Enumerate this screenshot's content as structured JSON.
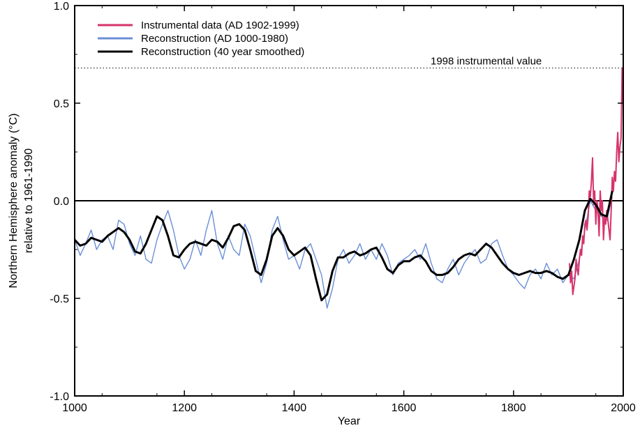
{
  "chart_data": {
    "type": "line",
    "xlabel": "Year",
    "ylabel": "Northern Hemisphere anomaly (°C)",
    "ylabel2": "relative to 1961-1990",
    "xlim": [
      1000,
      2000
    ],
    "ylim": [
      -1.0,
      1.0
    ],
    "xticks": [
      1000,
      1200,
      1400,
      1600,
      1800,
      2000
    ],
    "yticks": [
      "-1.0",
      "-0.5",
      "0.0",
      "0.5",
      "1.0"
    ],
    "ytick_values": [
      -1.0,
      -0.5,
      0.0,
      0.5,
      1.0
    ],
    "grid": false,
    "legend_position": "top-left",
    "zero_line": 0.0,
    "reference_line": {
      "value": 0.68,
      "label": "1998 instrumental value",
      "style": "dotted"
    },
    "series": [
      {
        "name": "Instrumental data (AD 1902-1999)",
        "color": "#d6336c",
        "x": [
          1902,
          1904,
          1906,
          1908,
          1910,
          1912,
          1914,
          1916,
          1918,
          1920,
          1922,
          1924,
          1926,
          1928,
          1930,
          1932,
          1934,
          1936,
          1938,
          1940,
          1942,
          1944,
          1946,
          1948,
          1950,
          1952,
          1954,
          1956,
          1958,
          1960,
          1962,
          1964,
          1966,
          1968,
          1970,
          1972,
          1974,
          1976,
          1978,
          1980,
          1982,
          1984,
          1986,
          1988,
          1990,
          1992,
          1994,
          1996,
          1998,
          1999
        ],
        "y": [
          -0.32,
          -0.42,
          -0.36,
          -0.48,
          -0.44,
          -0.4,
          -0.3,
          -0.35,
          -0.38,
          -0.3,
          -0.25,
          -0.28,
          -0.18,
          -0.22,
          -0.12,
          -0.1,
          -0.15,
          -0.08,
          0.05,
          0.02,
          0.1,
          0.22,
          -0.02,
          0.05,
          -0.12,
          0.0,
          -0.05,
          -0.18,
          0.05,
          -0.05,
          0.0,
          -0.2,
          -0.08,
          -0.12,
          -0.05,
          -0.1,
          -0.15,
          -0.2,
          -0.05,
          0.12,
          0.05,
          0.15,
          0.1,
          0.25,
          0.35,
          0.2,
          0.28,
          0.32,
          0.68,
          0.5
        ]
      },
      {
        "name": "Reconstruction (AD 1000-1980)",
        "color": "#6b8fd6",
        "x": [
          1000,
          1010,
          1020,
          1030,
          1040,
          1050,
          1060,
          1070,
          1080,
          1090,
          1100,
          1110,
          1120,
          1130,
          1140,
          1150,
          1160,
          1170,
          1180,
          1190,
          1200,
          1210,
          1220,
          1230,
          1240,
          1250,
          1260,
          1270,
          1280,
          1290,
          1300,
          1310,
          1320,
          1330,
          1340,
          1350,
          1360,
          1370,
          1380,
          1390,
          1400,
          1410,
          1420,
          1430,
          1440,
          1450,
          1460,
          1470,
          1480,
          1490,
          1500,
          1510,
          1520,
          1530,
          1540,
          1550,
          1560,
          1570,
          1580,
          1590,
          1600,
          1610,
          1620,
          1630,
          1640,
          1650,
          1660,
          1670,
          1680,
          1690,
          1700,
          1710,
          1720,
          1730,
          1740,
          1750,
          1760,
          1770,
          1780,
          1790,
          1800,
          1810,
          1820,
          1830,
          1840,
          1850,
          1860,
          1870,
          1880,
          1890,
          1900,
          1910,
          1920,
          1930,
          1940,
          1950,
          1960,
          1970,
          1980
        ],
        "y": [
          -0.2,
          -0.28,
          -0.22,
          -0.15,
          -0.25,
          -0.2,
          -0.18,
          -0.25,
          -0.1,
          -0.12,
          -0.22,
          -0.28,
          -0.18,
          -0.3,
          -0.32,
          -0.2,
          -0.12,
          -0.05,
          -0.15,
          -0.28,
          -0.35,
          -0.3,
          -0.2,
          -0.28,
          -0.15,
          -0.05,
          -0.22,
          -0.3,
          -0.18,
          -0.25,
          -0.28,
          -0.12,
          -0.18,
          -0.3,
          -0.42,
          -0.32,
          -0.15,
          -0.08,
          -0.2,
          -0.3,
          -0.28,
          -0.35,
          -0.25,
          -0.22,
          -0.3,
          -0.38,
          -0.55,
          -0.45,
          -0.3,
          -0.25,
          -0.32,
          -0.28,
          -0.22,
          -0.3,
          -0.25,
          -0.3,
          -0.22,
          -0.28,
          -0.38,
          -0.32,
          -0.3,
          -0.28,
          -0.25,
          -0.3,
          -0.22,
          -0.32,
          -0.4,
          -0.42,
          -0.35,
          -0.3,
          -0.38,
          -0.32,
          -0.28,
          -0.25,
          -0.32,
          -0.3,
          -0.22,
          -0.2,
          -0.28,
          -0.35,
          -0.38,
          -0.42,
          -0.45,
          -0.38,
          -0.35,
          -0.4,
          -0.32,
          -0.38,
          -0.35,
          -0.42,
          -0.38,
          -0.4,
          -0.3,
          -0.15,
          0.0,
          -0.05,
          -0.08,
          -0.1,
          0.02
        ]
      },
      {
        "name": "Reconstruction (40 year smoothed)",
        "color": "#000000",
        "x": [
          1000,
          1010,
          1020,
          1030,
          1040,
          1050,
          1060,
          1070,
          1080,
          1090,
          1100,
          1110,
          1120,
          1130,
          1140,
          1150,
          1160,
          1170,
          1180,
          1190,
          1200,
          1210,
          1220,
          1230,
          1240,
          1250,
          1260,
          1270,
          1280,
          1290,
          1300,
          1310,
          1320,
          1330,
          1340,
          1350,
          1360,
          1370,
          1380,
          1390,
          1400,
          1410,
          1420,
          1430,
          1440,
          1450,
          1460,
          1470,
          1480,
          1490,
          1500,
          1510,
          1520,
          1530,
          1540,
          1550,
          1560,
          1570,
          1580,
          1590,
          1600,
          1610,
          1620,
          1630,
          1640,
          1650,
          1660,
          1670,
          1680,
          1690,
          1700,
          1710,
          1720,
          1730,
          1740,
          1750,
          1760,
          1770,
          1780,
          1790,
          1800,
          1810,
          1820,
          1830,
          1840,
          1850,
          1860,
          1870,
          1880,
          1890,
          1900,
          1910,
          1920,
          1930,
          1940,
          1950,
          1960,
          1970,
          1980
        ],
        "y": [
          -0.2,
          -0.23,
          -0.22,
          -0.19,
          -0.2,
          -0.21,
          -0.18,
          -0.16,
          -0.14,
          -0.16,
          -0.2,
          -0.26,
          -0.27,
          -0.22,
          -0.15,
          -0.08,
          -0.1,
          -0.18,
          -0.28,
          -0.29,
          -0.25,
          -0.22,
          -0.21,
          -0.22,
          -0.23,
          -0.2,
          -0.21,
          -0.24,
          -0.19,
          -0.13,
          -0.12,
          -0.15,
          -0.25,
          -0.36,
          -0.38,
          -0.3,
          -0.18,
          -0.14,
          -0.18,
          -0.25,
          -0.28,
          -0.26,
          -0.24,
          -0.28,
          -0.4,
          -0.51,
          -0.48,
          -0.36,
          -0.29,
          -0.29,
          -0.27,
          -0.26,
          -0.28,
          -0.27,
          -0.25,
          -0.24,
          -0.29,
          -0.35,
          -0.37,
          -0.33,
          -0.31,
          -0.31,
          -0.29,
          -0.28,
          -0.31,
          -0.36,
          -0.38,
          -0.38,
          -0.37,
          -0.34,
          -0.3,
          -0.28,
          -0.27,
          -0.28,
          -0.25,
          -0.22,
          -0.24,
          -0.28,
          -0.32,
          -0.35,
          -0.37,
          -0.38,
          -0.37,
          -0.36,
          -0.37,
          -0.37,
          -0.36,
          -0.37,
          -0.39,
          -0.4,
          -0.38,
          -0.3,
          -0.2,
          -0.05,
          0.01,
          -0.02,
          -0.07,
          -0.08,
          0.05
        ]
      }
    ]
  }
}
